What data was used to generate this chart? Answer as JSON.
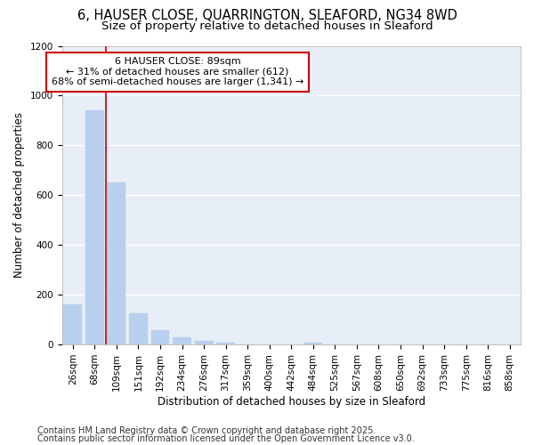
{
  "title_line1": "6, HAUSER CLOSE, QUARRINGTON, SLEAFORD, NG34 8WD",
  "title_line2": "Size of property relative to detached houses in Sleaford",
  "xlabel": "Distribution of detached houses by size in Sleaford",
  "ylabel": "Number of detached properties",
  "categories": [
    "26sqm",
    "68sqm",
    "109sqm",
    "151sqm",
    "192sqm",
    "234sqm",
    "276sqm",
    "317sqm",
    "359sqm",
    "400sqm",
    "442sqm",
    "484sqm",
    "525sqm",
    "567sqm",
    "608sqm",
    "650sqm",
    "692sqm",
    "733sqm",
    "775sqm",
    "816sqm",
    "858sqm"
  ],
  "values": [
    160,
    940,
    650,
    125,
    58,
    28,
    14,
    9,
    0,
    0,
    0,
    8,
    0,
    0,
    0,
    0,
    0,
    0,
    0,
    0,
    0
  ],
  "bar_color": "#b8d0ee",
  "bar_edgecolor": "#b8d0ee",
  "vline_x": 1.5,
  "vline_color": "#cc0000",
  "annotation_text": "6 HAUSER CLOSE: 89sqm\n← 31% of detached houses are smaller (612)\n68% of semi-detached houses are larger (1,341) →",
  "annotation_box_color": "#cc0000",
  "ylim": [
    0,
    1200
  ],
  "yticks": [
    0,
    200,
    400,
    600,
    800,
    1000,
    1200
  ],
  "background_color": "#e8eef8",
  "grid_color": "#ffffff",
  "fig_background": "#ffffff",
  "footer_line1": "Contains HM Land Registry data © Crown copyright and database right 2025.",
  "footer_line2": "Contains public sector information licensed under the Open Government Licence v3.0.",
  "title_fontsize": 10.5,
  "subtitle_fontsize": 9.5,
  "axis_label_fontsize": 8.5,
  "tick_fontsize": 7.5,
  "annotation_fontsize": 8,
  "footer_fontsize": 7
}
